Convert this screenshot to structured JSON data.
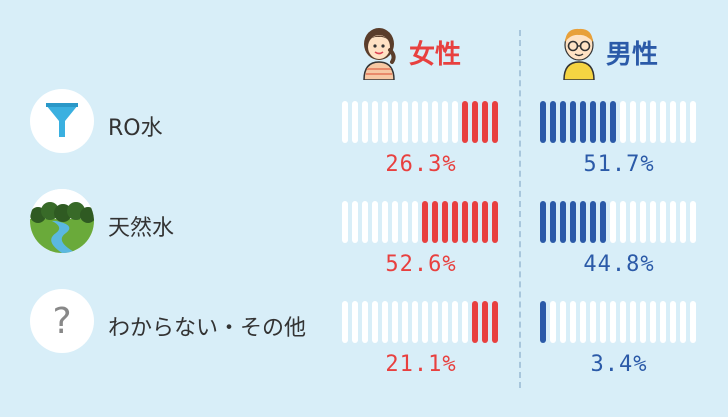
{
  "chart_data": {
    "type": "bar",
    "categories": [
      "RO水",
      "天然水",
      "わからない・その他"
    ],
    "series": [
      {
        "name": "女性",
        "values": [
          26.3,
          52.6,
          21.1
        ],
        "labels": [
          "26.3%",
          "52.6%",
          "21.1%"
        ],
        "color": "#e8403f"
      },
      {
        "name": "男性",
        "values": [
          51.7,
          44.8,
          3.4
        ],
        "labels": [
          "51.7%",
          "44.8%",
          "3.4%"
        ],
        "color": "#2b5aa8"
      }
    ],
    "ylim": [
      0,
      100
    ]
  },
  "headers": {
    "female": "女性",
    "male": "男性"
  },
  "categories_icons": [
    "funnel-icon",
    "landscape-icon",
    "question-icon"
  ],
  "colors": {
    "background": "#d8eef8",
    "female": "#e8403f",
    "male": "#2b5aa8",
    "empty": "#ffffff"
  }
}
